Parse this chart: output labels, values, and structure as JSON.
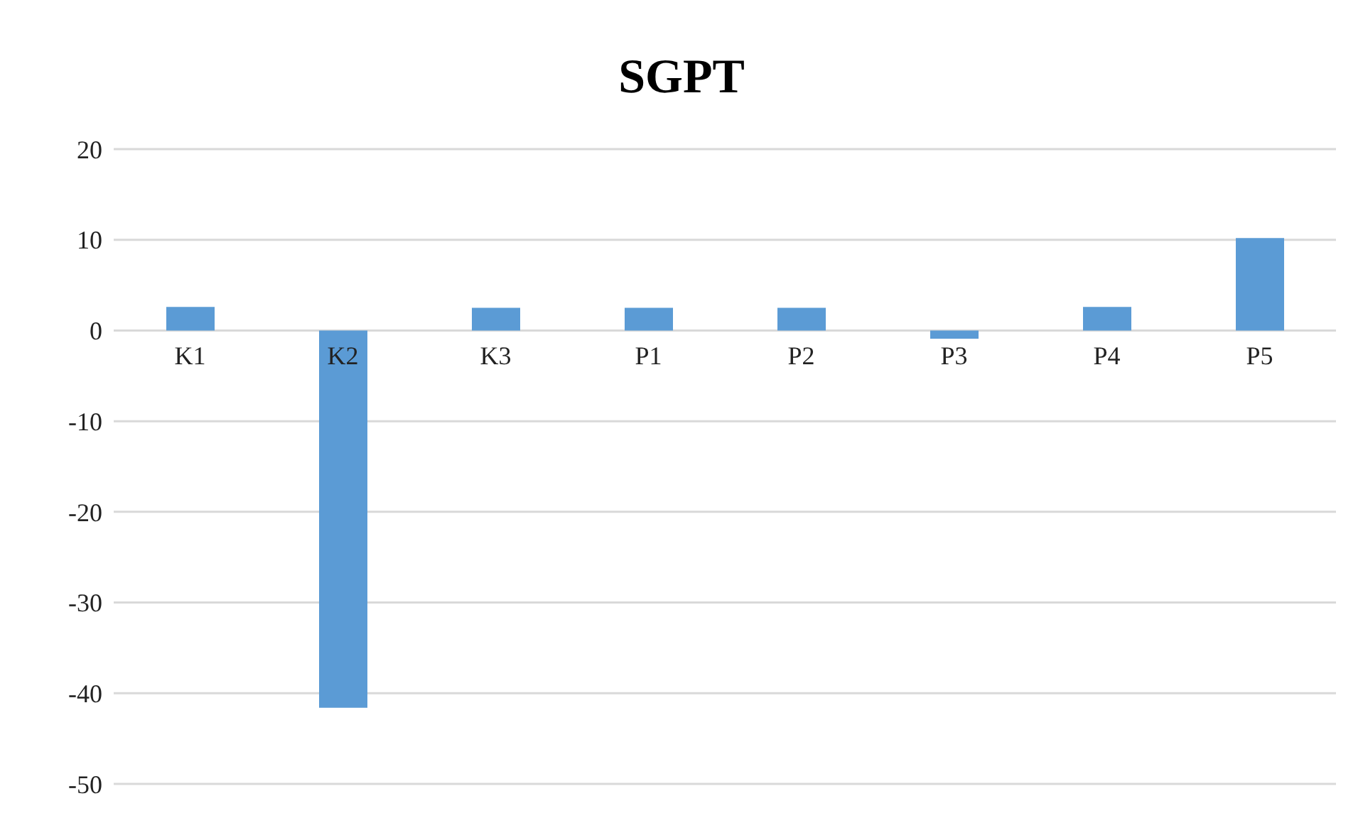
{
  "chart_data": {
    "type": "bar",
    "title": "SGPT",
    "categories": [
      "K1",
      "K2",
      "K3",
      "P1",
      "P2",
      "P3",
      "P4",
      "P5"
    ],
    "values": [
      2.6,
      -41.6,
      2.5,
      2.5,
      2.5,
      -0.9,
      2.6,
      10.2
    ],
    "color": "#5b9bd5",
    "ylim": [
      -50,
      20
    ],
    "yticks": [
      -50,
      -40,
      -30,
      -20,
      -10,
      0,
      10,
      20
    ],
    "grid": "y"
  }
}
